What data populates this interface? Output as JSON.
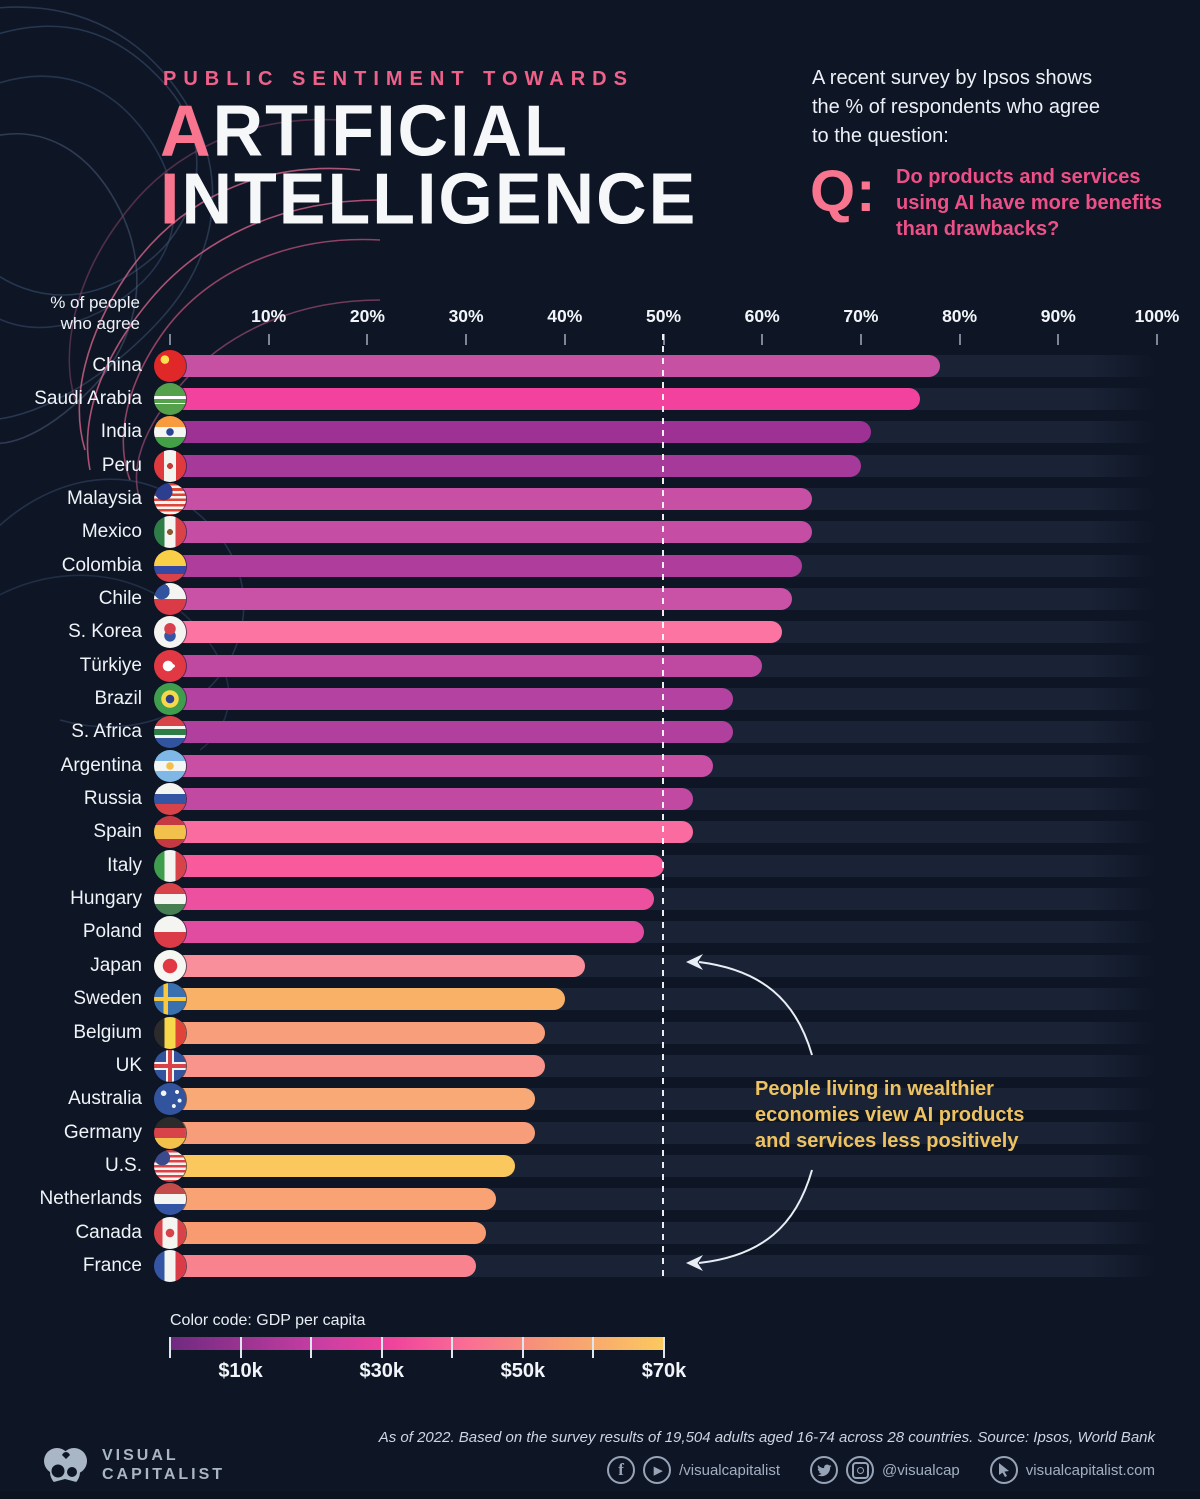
{
  "header": {
    "eyebrow": "PUBLIC SENTIMENT TOWARDS",
    "title_line1_accent": "A",
    "title_line1_rest": "RTIFICIAL",
    "title_line2_accent": "I",
    "title_line2_rest": "NTELLIGENCE",
    "intro_lines": [
      "A recent survey by Ipsos shows",
      "the % of respondents who agree",
      "to the question:"
    ],
    "q_label": "Q:",
    "question_lines": [
      "Do products and services",
      "using AI have more benefits",
      "than drawbacks?"
    ]
  },
  "chart": {
    "axis_label_line1": "% of people",
    "axis_label_line2": "who agree",
    "tick_labels": [
      "10%",
      "20%",
      "30%",
      "40%",
      "50%",
      "60%",
      "70%",
      "80%",
      "90%",
      "100%"
    ]
  },
  "chart_data": {
    "type": "bar",
    "title": "Public Sentiment Towards Artificial Intelligence",
    "question": "Do products and services using AI have more benefits than drawbacks?",
    "unit": "% of respondents who agree",
    "xlim": [
      0,
      100
    ],
    "x_ticks_pct": [
      0,
      10,
      20,
      30,
      40,
      50,
      60,
      70,
      80,
      90,
      100
    ],
    "reference_line_pct": 50,
    "legend": "Color code: GDP per capita",
    "legend_position": "bottom-left",
    "grid": false,
    "categories": [
      "China",
      "Saudi Arabia",
      "India",
      "Peru",
      "Malaysia",
      "Mexico",
      "Colombia",
      "Chile",
      "S. Korea",
      "Türkiye",
      "Brazil",
      "S. Africa",
      "Argentina",
      "Russia",
      "Spain",
      "Italy",
      "Hungary",
      "Poland",
      "Japan",
      "Sweden",
      "Belgium",
      "UK",
      "Australia",
      "Germany",
      "U.S.",
      "Netherlands",
      "Canada",
      "France"
    ],
    "values": [
      78,
      76,
      71,
      70,
      65,
      65,
      64,
      63,
      62,
      60,
      57,
      57,
      55,
      53,
      53,
      50,
      49,
      48,
      42,
      40,
      38,
      38,
      37,
      37,
      35,
      33,
      32,
      31
    ],
    "bar_colors": [
      "#c650a2",
      "#f2429d",
      "#9d3294",
      "#a63a9a",
      "#c74fa4",
      "#c54da3",
      "#ae3d9c",
      "#c952a6",
      "#fb74a2",
      "#bf48a1",
      "#b442a0",
      "#b03f9e",
      "#c84fa4",
      "#c149a2",
      "#fa6ba0",
      "#f85a9c",
      "#ec509f",
      "#e14ca0",
      "#f98f9a",
      "#f9b067",
      "#f89e7a",
      "#f9948c",
      "#f9a975",
      "#f89d79",
      "#fbc85e",
      "#f9a273",
      "#f99b71",
      "#f8838e"
    ],
    "flag_css": [
      "radial-gradient(circle at 34% 30%, #fcdf4e 0 4px, rgba(0,0,0,0) 4.5px), #e02828",
      "linear-gradient(180deg, rgba(255,255,255,0) 0 40%, #ffffff 40% 50%, rgba(255,255,255,0) 50% 62%, #ffffff 62% 66%, rgba(255,255,255,0) 66%), #55a04b",
      "radial-gradient(circle at 50% 50%, #2a4597 0 3.5px, rgba(0,0,0,0) 4px), linear-gradient(180deg, #f89a3e 0 34%, #f4f6f2 34% 65%, #43a047 65%)",
      "radial-gradient(circle at 50% 50%, #c43b35 0 3px, rgba(0,0,0,0) 3px), linear-gradient(90deg, #e03a3f 0 32%, #f3f4f0 32% 68%, #e03a3f 68%)",
      "radial-gradient(circle at 30% 26%, #2c3f8f 0 9px, rgba(0,0,0,0) 9px), repeating-linear-gradient(180deg, #e04438 0 2.6px, #f4f5f1 2.6px 5.2px)",
      "radial-gradient(circle at 50% 50%, #8a5a32 0 3px, rgba(0,0,0,0) 3px), linear-gradient(90deg, #2f7d46 0 33%, #f4f5f1 33% 67%, #d8434a 67%)",
      "linear-gradient(180deg, #f8cf46 0 50%, #3548a4 50% 75%, #d8434a 75%)",
      "radial-gradient(circle at 24% 26%, #32549f 0 8px, rgba(0,0,0,0) 8px), linear-gradient(180deg, #f4f5f1 0 50%, #da3b47 50%)",
      "radial-gradient(circle at 50% 40%, #d8404d 0 5.5px, rgba(0,0,0,0) 6px), radial-gradient(circle at 50% 62%, #3455a4 0 5.5px, rgba(0,0,0,0) 6px), #f4f5f1",
      "radial-gradient(circle at 44% 50%, #ffffff 0 5px, rgba(0,0,0,0) 5.5px), radial-gradient(circle at 60% 50%, #ffffff 0 1.5px, rgba(0,0,0,0) 2px), #e23843",
      "radial-gradient(circle at 50% 50%, #2c3f8f 0 4px, rgba(0,0,0,0) 4.5px), radial-gradient(circle at 50% 50%, #f8d84b 0 8.5px, rgba(0,0,0,0) 9px), #3f9e4d",
      "linear-gradient(180deg, #d8434a 0 32%, #f4f5f1 32% 40%, #2e7d46 40% 60%, #f4f5f1 60% 68%, #32549f 68%)",
      "radial-gradient(circle at 50% 50%, #f2c14b 0 3.5px, rgba(0,0,0,0) 4px), linear-gradient(180deg, #7fb8e6 0 34%, #f4f6f4 34% 66%, #7fb8e6 66%)",
      "linear-gradient(180deg, #f4f5f1 0 34%, #3455a4 34% 66%, #d8434a 66%)",
      "linear-gradient(180deg, #c53a42 0 28%, #f2c14b 28% 72%, #c53a42 72%)",
      "linear-gradient(90deg, #3f9e4d 0 33%, #f4f5f1 33% 67%, #d8434a 67%)",
      "linear-gradient(180deg, #d8434a 0 34%, #f4f5f1 34% 66%, #477e52 66%)",
      "linear-gradient(180deg, #f4f5f1 0 50%, #da3b47 50%)",
      "radial-gradient(circle at 50% 50%, #e23843 0 7px, rgba(0,0,0,0) 7.5px), #f6f7f3",
      "linear-gradient(90deg, rgba(0,0,0,0) 0 30%, #f8c93e 30% 44%, rgba(0,0,0,0) 44%), linear-gradient(180deg, rgba(0,0,0,0) 0 43%, #f8c93e 43% 57%, rgba(0,0,0,0) 57%), #3a6fb0",
      "linear-gradient(90deg, #2b2b2b 0 33%, #f8d84b 33% 67%, #e04438 67%)",
      "linear-gradient(0deg, rgba(0,0,0,0) 0 43%, #d8434a 43% 57%, rgba(0,0,0,0) 57%), linear-gradient(90deg, rgba(0,0,0,0) 0 43%, #d8434a 43% 57%, rgba(0,0,0,0) 57%), linear-gradient(0deg, rgba(0,0,0,0) 0 37%, #f4f5f1 37% 63%, rgba(0,0,0,0) 63%), linear-gradient(90deg, rgba(0,0,0,0) 0 37%, #f4f5f1 37% 63%, rgba(0,0,0,0) 63%), #32549f",
      "radial-gradient(circle at 30% 32%, #f4f5f1 0 2.5px, rgba(0,0,0,0) 3px), radial-gradient(circle at 72% 28%, #f4f5f1 0 1.8px, rgba(0,0,0,0) 2.2px), radial-gradient(circle at 80% 55%, #f4f5f1 0 1.8px, rgba(0,0,0,0) 2.2px), radial-gradient(circle at 62% 72%, #f4f5f1 0 1.8px, rgba(0,0,0,0) 2.2px), #32549f",
      "linear-gradient(180deg, #2b2b2b 0 34%, #d8434a 34% 66%, #f2c14b 66%)",
      "radial-gradient(circle at 26% 24%, #3b4a8c 0 7.5px, rgba(0,0,0,0) 8px), repeating-linear-gradient(180deg, #d8434a 0 2.5px, #f4f5f1 2.5px 5px)",
      "linear-gradient(180deg, #c54a4a 0 34%, #f4f5f1 34% 66%, #3455a4 66%)",
      "radial-gradient(circle at 50% 50%, #d8434a 0 4px, rgba(0,0,0,0) 4.5px), linear-gradient(90deg, #d8434a 0 26%, #f4f5f1 26% 74%, #d8434a 74%)",
      "linear-gradient(90deg, #3455a4 0 33%, #f4f5f1 33% 67%, #da3b47 67%)"
    ],
    "annotation": "People living in wealthier economies view AI products and services less positively"
  },
  "annotation": {
    "lines": [
      "People living in wealthier",
      "economies view AI products",
      "and services less positively"
    ]
  },
  "legend": {
    "title": "Color code: GDP per capita",
    "labels": [
      "$10k",
      "$30k",
      "$50k",
      "$70k"
    ]
  },
  "footer": {
    "note": "As of 2022. Based on the survey results of 19,504 adults aged 16-74 across 28 countries. Source: Ipsos, World Bank",
    "facebook_glyph": "f",
    "play_glyph": "▶",
    "handle_fb_yt": "/visualcapitalist",
    "handle_tw_ig": "@visualcap",
    "website": "visualcapitalist.com",
    "logo_line1": "VISUAL",
    "logo_line2": "CAPITALIST"
  }
}
